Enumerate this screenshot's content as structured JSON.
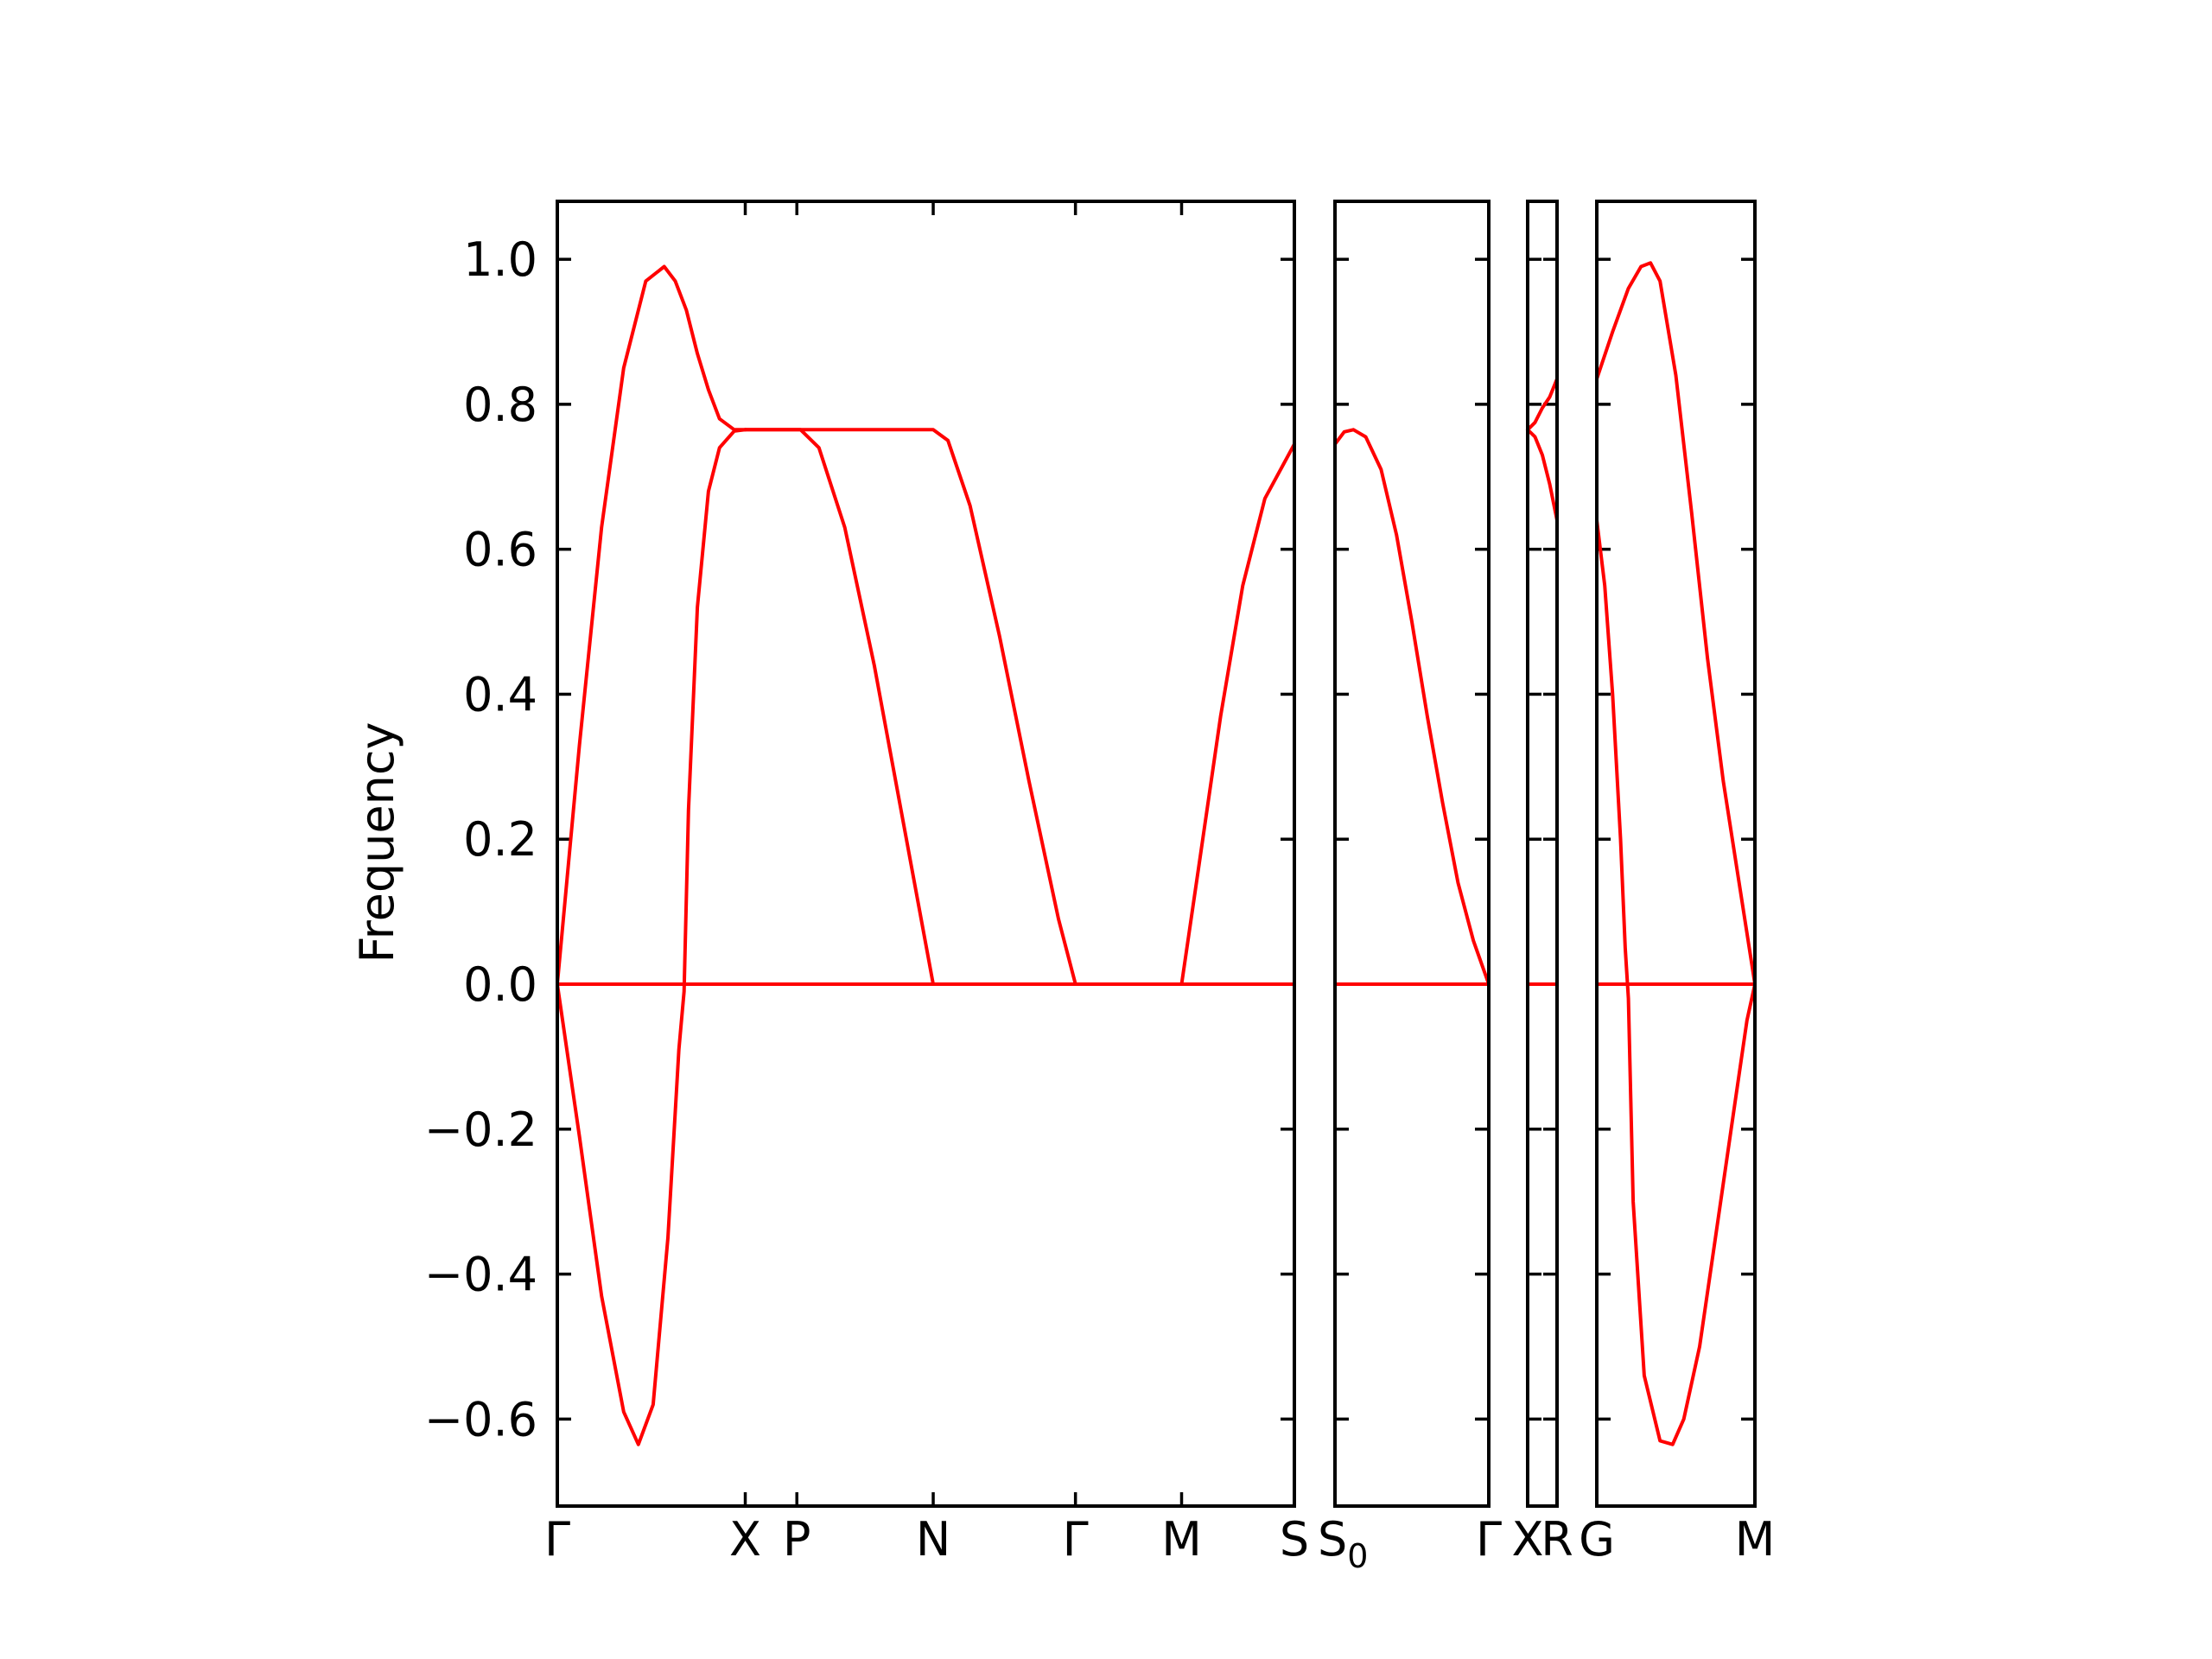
{
  "chart_data": {
    "type": "line",
    "ylabel": "Frequency",
    "ylim": [
      -0.72,
      1.08
    ],
    "y_ticks": [
      "1.0",
      "0.8",
      "0.6",
      "0.4",
      "0.2",
      "0.0",
      "−0.2",
      "−0.4",
      "−0.6"
    ],
    "y_tick_values": [
      1.0,
      0.8,
      0.6,
      0.4,
      0.2,
      0.0,
      -0.2,
      -0.4,
      -0.6
    ],
    "line_color": "#ff0000",
    "grid": false,
    "segments": [
      {
        "path": "Γ-X-P-N-Γ-M-S",
        "x_labels": [
          {
            "pos": 0.0,
            "text": "Γ"
          },
          {
            "pos": 0.255,
            "text": "X"
          },
          {
            "pos": 0.325,
            "text": "P"
          },
          {
            "pos": 0.51,
            "text": "N"
          },
          {
            "pos": 0.703,
            "text": "Γ"
          },
          {
            "pos": 0.847,
            "text": "M"
          },
          {
            "pos": 1.0,
            "text": "S"
          }
        ],
        "series": [
          {
            "x": [
              0,
              0.03,
              0.06,
              0.09,
              0.12,
              0.145,
              0.16,
              0.175,
              0.19,
              0.205,
              0.22,
              0.24,
              0.255
            ],
            "y": [
              0,
              0.33,
              0.63,
              0.85,
              0.97,
              0.99,
              0.97,
              0.93,
              0.87,
              0.82,
              0.78,
              0.765,
              0.765
            ]
          },
          {
            "x": [
              0,
              0.03,
              0.06,
              0.09,
              0.11,
              0.13,
              0.15,
              0.165,
              0.172,
              0.178,
              0.19,
              0.205,
              0.22,
              0.24,
              0.255
            ],
            "y": [
              0,
              -0.21,
              -0.43,
              -0.59,
              -0.635,
              -0.58,
              -0.35,
              -0.09,
              -0.01,
              0.24,
              0.52,
              0.68,
              0.74,
              0.763,
              0.765
            ]
          },
          {
            "x": [
              0,
              0.255,
              0.325,
              0.51,
              0.703,
              0.847,
              1.0
            ],
            "y": [
              0,
              0,
              0,
              0,
              0,
              0,
              0
            ]
          },
          {
            "x": [
              0.255,
              0.33,
              0.355,
              0.39,
              0.43,
              0.47,
              0.51
            ],
            "y": [
              0.765,
              0.765,
              0.74,
              0.63,
              0.44,
              0.22,
              0
            ]
          },
          {
            "x": [
              0.255,
              0.51,
              0.53,
              0.56,
              0.6,
              0.64,
              0.68,
              0.703
            ],
            "y": [
              0.765,
              0.765,
              0.75,
              0.66,
              0.48,
              0.28,
              0.09,
              0
            ]
          },
          {
            "x": [
              0.847,
              0.87,
              0.9,
              0.93,
              0.96,
              1.0
            ],
            "y": [
              0,
              0.16,
              0.37,
              0.55,
              0.67,
              0.745
            ]
          }
        ]
      },
      {
        "path": "S0-Γ",
        "x_labels": [
          {
            "pos": 0.0,
            "text": "S",
            "sub": "0"
          },
          {
            "pos": 1.0,
            "text": "Γ"
          }
        ],
        "series": [
          {
            "x": [
              0,
              0.06,
              0.12,
              0.2,
              0.3,
              0.4,
              0.5,
              0.6,
              0.7,
              0.8,
              0.9,
              1.0
            ],
            "y": [
              0.745,
              0.762,
              0.765,
              0.755,
              0.71,
              0.62,
              0.5,
              0.37,
              0.25,
              0.14,
              0.06,
              0
            ]
          },
          {
            "x": [
              0,
              1.0
            ],
            "y": [
              0,
              0
            ]
          }
        ]
      },
      {
        "path": "X-R",
        "x_labels": [
          {
            "pos": 0.0,
            "text": "X"
          },
          {
            "pos": 1.0,
            "text": "R"
          }
        ],
        "series": [
          {
            "x": [
              0,
              0.25,
              0.5,
              0.75,
              1.0
            ],
            "y": [
              0.765,
              0.775,
              0.795,
              0.81,
              0.835
            ]
          },
          {
            "x": [
              0,
              0.25,
              0.5,
              0.75,
              1.0
            ],
            "y": [
              0.765,
              0.755,
              0.73,
              0.69,
              0.64
            ]
          },
          {
            "x": [
              0,
              1.0
            ],
            "y": [
              0,
              0
            ]
          }
        ]
      },
      {
        "path": "G-M",
        "x_labels": [
          {
            "pos": 0.0,
            "text": "G"
          },
          {
            "pos": 1.0,
            "text": "M"
          }
        ],
        "series": [
          {
            "x": [
              0,
              0.1,
              0.2,
              0.28,
              0.34,
              0.4,
              0.5,
              0.6,
              0.7,
              0.8,
              0.9,
              1.0
            ],
            "y": [
              0.835,
              0.9,
              0.96,
              0.99,
              0.995,
              0.97,
              0.84,
              0.65,
              0.45,
              0.28,
              0.14,
              0
            ]
          },
          {
            "x": [
              0,
              0.05,
              0.1,
              0.15,
              0.18,
              0.2,
              0.23,
              0.3,
              0.4,
              0.48,
              0.55,
              0.65,
              0.75,
              0.85,
              0.95,
              1.0
            ],
            "y": [
              0.64,
              0.55,
              0.4,
              0.2,
              0.05,
              -0.02,
              -0.3,
              -0.54,
              -0.63,
              -0.635,
              -0.6,
              -0.5,
              -0.35,
              -0.2,
              -0.05,
              0
            ]
          },
          {
            "x": [
              0,
              1.0
            ],
            "y": [
              0,
              0
            ]
          }
        ]
      }
    ]
  }
}
